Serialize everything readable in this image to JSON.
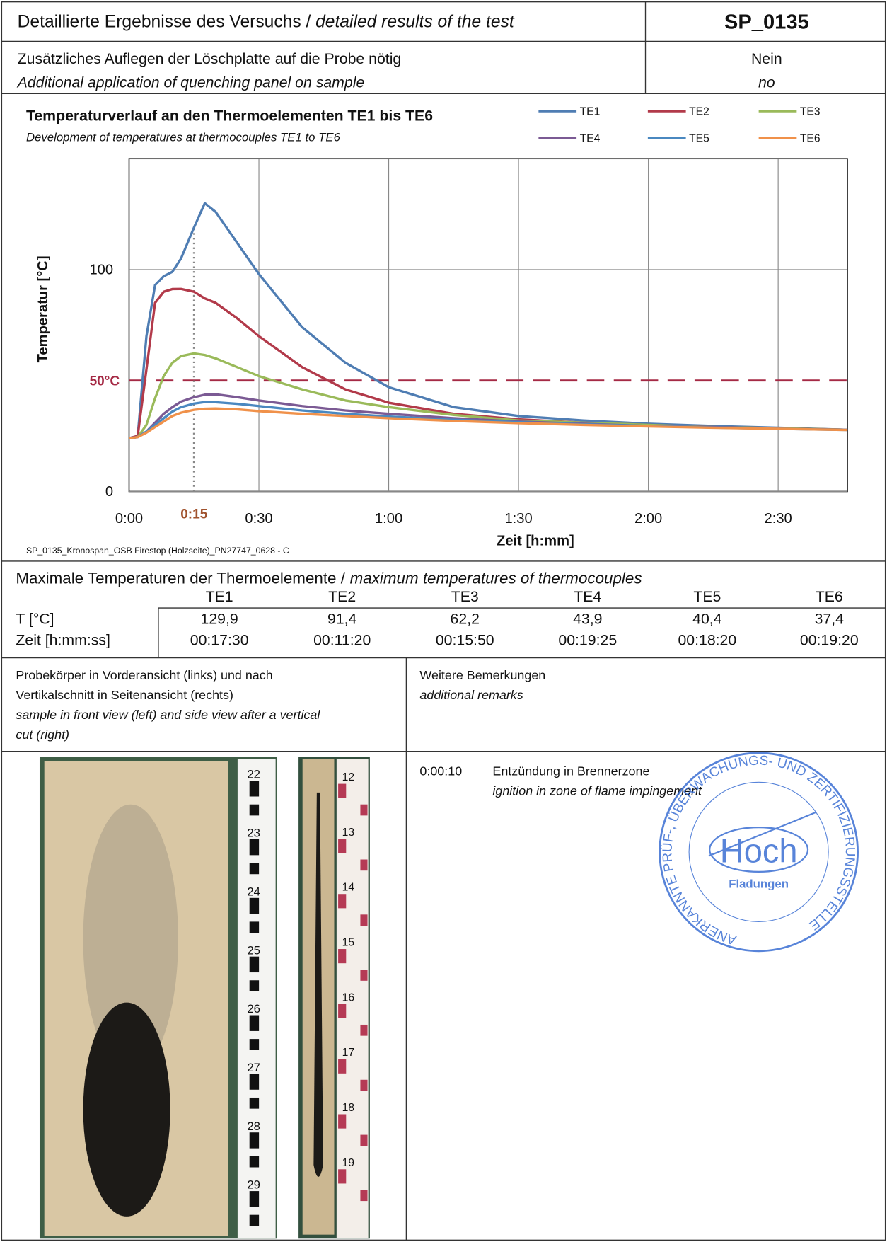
{
  "header": {
    "title": "Detaillierte Ergebnisse des Versuchs /",
    "title_italic": "detailed results of the test",
    "id": "SP_0135"
  },
  "quenching": {
    "label": "Zusätzliches Auflegen der Löschplatte auf die Probe nötig",
    "label_italic": "Additional application of quenching panel on sample",
    "value": "Nein",
    "value_italic": "no"
  },
  "chart_data": {
    "type": "line",
    "title": "Temperaturverlauf an den Thermoelementen TE1 bis TE6",
    "subtitle": "Development of temperatures at thermocouples TE1 to TE6",
    "x_label": "Zeit [h:mm]",
    "y_label": "Temperatur [°C]",
    "note": "SP_0135_Kronospan_OSB Firestop (Holzseite)_PN27747_0628 - C",
    "x": [
      0,
      2,
      4,
      6,
      8,
      10,
      12,
      15,
      17.5,
      20,
      25,
      30,
      40,
      50,
      60,
      75,
      90,
      105,
      120,
      135,
      150,
      166
    ],
    "series": [
      {
        "name": "TE1",
        "color": "#4f7db3",
        "values": [
          24,
          25,
          70,
          93,
          97,
          99,
          105,
          119,
          129.9,
          126,
          112,
          98,
          74,
          58,
          47,
          38,
          34,
          32,
          30.5,
          29.5,
          28.7,
          27.8
        ]
      },
      {
        "name": "TE2",
        "color": "#b23a4a",
        "values": [
          24,
          25,
          55,
          85,
          90,
          91.2,
          91.3,
          90,
          87,
          85,
          78,
          70,
          56,
          46,
          40,
          35,
          32.5,
          31,
          30,
          29,
          28.5,
          27.8
        ]
      },
      {
        "name": "TE3",
        "color": "#9aba5a",
        "values": [
          24,
          24.5,
          30,
          42,
          52,
          58,
          61,
          62.2,
          61.5,
          60,
          56,
          52,
          46,
          41,
          38,
          34.5,
          32,
          31,
          30,
          29,
          28.5,
          27.8
        ]
      },
      {
        "name": "TE4",
        "color": "#7b5a94",
        "values": [
          24,
          24.5,
          27,
          31,
          35,
          38,
          40.5,
          42.5,
          43.6,
          43.8,
          42.5,
          41,
          38.5,
          36.5,
          35,
          33,
          31.5,
          30.5,
          29.5,
          29,
          28.3,
          27.8
        ]
      },
      {
        "name": "TE5",
        "color": "#4a88c0",
        "values": [
          24,
          24.5,
          27,
          30,
          33,
          36,
          38,
          39.6,
          40.3,
          40.2,
          39.5,
          38.5,
          36.5,
          35,
          33.8,
          32.3,
          31.2,
          30.3,
          29.5,
          28.8,
          28.2,
          27.7
        ]
      },
      {
        "name": "TE6",
        "color": "#f0914a",
        "values": [
          24,
          24.5,
          26.5,
          29,
          31.5,
          34,
          35.5,
          36.8,
          37.3,
          37.4,
          37,
          36.2,
          35,
          34,
          33,
          31.8,
          30.8,
          30,
          29.3,
          28.7,
          28.2,
          27.7
        ]
      }
    ],
    "xlim": [
      0,
      166
    ],
    "ylim": [
      0,
      150
    ],
    "xticks": [
      {
        "value": 0,
        "label": "0:00"
      },
      {
        "value": 30,
        "label": "0:30"
      },
      {
        "value": 60,
        "label": "1:00"
      },
      {
        "value": 90,
        "label": "1:30"
      },
      {
        "value": 120,
        "label": "2:00"
      },
      {
        "value": 150,
        "label": "2:30"
      }
    ],
    "yticks": [
      0,
      100
    ],
    "threshold": {
      "value": 50,
      "label": "50°C",
      "color": "#a52a45"
    },
    "marker": {
      "value": 15,
      "label": "0:15",
      "color": "#a0522d"
    },
    "grid": true
  },
  "max_table": {
    "title": "Maximale Temperaturen der Thermoelemente /",
    "title_italic": "maximum temperatures of thermocouples",
    "columns": [
      "TE1",
      "TE2",
      "TE3",
      "TE4",
      "TE5",
      "TE6"
    ],
    "rows": [
      {
        "label": "T [°C]",
        "cells": [
          "129,9",
          "91,4",
          "62,2",
          "43,9",
          "40,4",
          "37,4"
        ]
      },
      {
        "label": "Zeit [h:mm:ss]",
        "cells": [
          "00:17:30",
          "00:11:20",
          "00:15:50",
          "00:19:25",
          "00:18:20",
          "00:19:20"
        ]
      }
    ]
  },
  "photos": {
    "caption": [
      "Probekörper in Vorderansicht (links) und nach",
      "Vertikalschnitt in Seitenansicht (rechts)"
    ],
    "caption_italic": [
      "sample in front view (left) and side view after a vertical",
      "cut (right)"
    ],
    "front_ruler": [
      "22",
      "23",
      "24",
      "25",
      "26",
      "27",
      "28",
      "29"
    ],
    "side_ruler": [
      "12",
      "13",
      "14",
      "15",
      "16",
      "17",
      "18",
      "19"
    ]
  },
  "remarks": {
    "title": "Weitere Bemerkungen",
    "title_italic": "additional remarks",
    "entries": [
      {
        "time": "0:00:10",
        "text": "Entzündung in Brennerzone",
        "text_italic": "ignition in zone of flame impingement"
      }
    ]
  },
  "stamp": {
    "ring": "ANERKANNTE PRÜF-, ÜBERWACHUNGS- UND ZERTIFIZIERUNGSSTELLE",
    "name": "Hoch",
    "place": "Fladungen"
  }
}
